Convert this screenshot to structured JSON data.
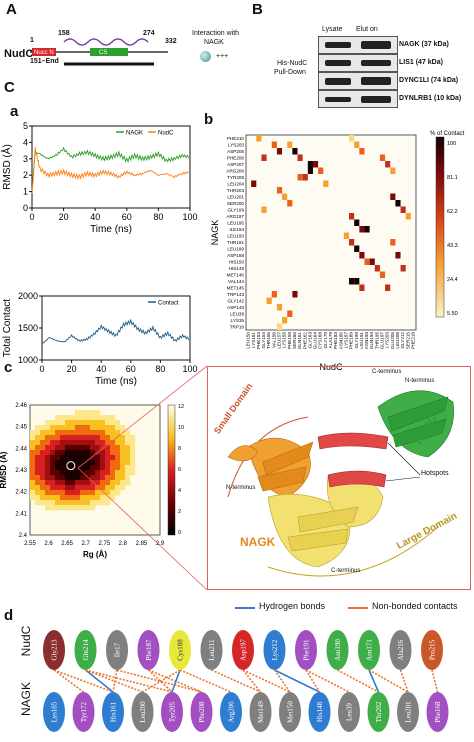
{
  "figure": {
    "panel_labels": {
      "A": "A",
      "B": "B",
      "C": "C",
      "a": "a",
      "b": "b",
      "c": "c",
      "d": "d"
    }
  },
  "panelA": {
    "protein": "NudC",
    "start": "1",
    "end": "332",
    "mark1": "158",
    "mark2": "274",
    "domain_left": "Nucc N",
    "domain_cs": "CS",
    "construct": "151–End",
    "interaction_title_1": "Interaction with",
    "interaction_title_2": "NAGK",
    "interaction_result": "+++",
    "colors": {
      "domain_left": "#d62728",
      "domain_cs": "#2ca02c",
      "coil": "#7b3fa0"
    }
  },
  "panelB": {
    "col_lysate": "Lysate",
    "col_elution": "Elut on",
    "row_label_1": "His-NudC",
    "row_label_2": "Pull-Down",
    "rows": [
      {
        "label": "NAGK (37 kDa)"
      },
      {
        "label": "LIS1 (47 kDa)"
      },
      {
        "label": "DYNC1LI (74 kDa)"
      },
      {
        "label": "DYNLRB1 (10 kDa)"
      }
    ]
  },
  "chart_rmsd": {
    "chart_data": {
      "type": "line",
      "ylabel": "RMSD (Å)",
      "xlabel": "Time (ns)",
      "xlim": [
        0,
        100
      ],
      "ylim": [
        0,
        5
      ],
      "xticks": [
        "0",
        "20",
        "40",
        "60",
        "80",
        "100"
      ],
      "yticks": [
        "0",
        "1",
        "2",
        "3",
        "4",
        "5"
      ],
      "legend_position": "top-right",
      "series": [
        {
          "name": "NAGK",
          "color": "#2ca02c",
          "x": [
            0,
            2,
            5,
            10,
            15,
            20,
            25,
            30,
            35,
            40,
            45,
            50,
            55,
            60,
            65,
            70,
            75,
            80,
            85,
            90,
            95,
            100
          ],
          "y": [
            1.0,
            3.4,
            3.3,
            3.0,
            3.2,
            3.6,
            3.1,
            3.3,
            3.4,
            3.2,
            3.0,
            3.1,
            3.3,
            2.9,
            3.2,
            3.0,
            3.1,
            3.3,
            2.9,
            3.0,
            3.2,
            3.1
          ]
        },
        {
          "name": "NudC",
          "color": "#ff7f0e",
          "x": [
            0,
            2,
            5,
            10,
            15,
            20,
            25,
            30,
            35,
            40,
            45,
            50,
            55,
            60,
            65,
            70,
            75,
            80,
            85,
            90,
            95,
            100
          ],
          "y": [
            0.8,
            3.6,
            2.4,
            2.0,
            2.1,
            2.2,
            2.0,
            1.9,
            2.1,
            2.0,
            2.2,
            2.1,
            1.9,
            2.2,
            2.0,
            2.1,
            2.3,
            2.0,
            2.1,
            1.9,
            2.1,
            2.2
          ]
        }
      ]
    }
  },
  "chart_contact": {
    "chart_data": {
      "type": "line",
      "ylabel": "Total Contact",
      "xlabel": "Time (ns)",
      "xlim": [
        0,
        100
      ],
      "ylim": [
        1000,
        2000
      ],
      "xticks": [
        "0",
        "20",
        "40",
        "60",
        "80",
        "100"
      ],
      "yticks": [
        "1000",
        "1500",
        "2000"
      ],
      "legend_position": "top-right",
      "series": [
        {
          "name": "Contact",
          "color": "#1f5f8b",
          "x": [
            0,
            5,
            10,
            15,
            20,
            25,
            30,
            35,
            40,
            45,
            50,
            55,
            60,
            65,
            70,
            75,
            80,
            85,
            90,
            95,
            100
          ],
          "y": [
            1250,
            1350,
            1300,
            1280,
            1380,
            1300,
            1320,
            1400,
            1520,
            1450,
            1380,
            1550,
            1600,
            1480,
            1420,
            1500,
            1350,
            1420,
            1300,
            1380,
            1320
          ]
        }
      ]
    }
  },
  "chart_heatmap": {
    "chart_data": {
      "type": "heatmap",
      "xlabel": "NudC",
      "ylabel": "NAGK",
      "colorbar_title": "% of Contact",
      "colorbar_ticks": [
        "100",
        "81.1",
        "62.2",
        "43.3",
        "24.4",
        "5.50"
      ],
      "y_categories": [
        "PHE210",
        "LYS203",
        "ASP205",
        "PHE208",
        "ASP207",
        "ARG206",
        "TYR205",
        "LEU204",
        "THR203",
        "LEU201",
        "SER200",
        "GLY199",
        "ARG197",
        "LEU195",
        "ILE194",
        "LEU193",
        "THR191",
        "LEU189",
        "ASP188",
        "HIS150",
        "HIS148",
        "MET146",
        "VAL144",
        "MET145",
        "TRP143",
        "GLY142",
        "ASP140",
        "LEU38",
        "LYS35",
        "TRP18"
      ],
      "x_categories": [
        "LEU150",
        "LYS151",
        "PHE153",
        "GLY154",
        "THR155",
        "VAL156",
        "LEU157",
        "LYS158",
        "PHE159",
        "SER160",
        "GLN161",
        "PHE162",
        "GLY163",
        "GLU164",
        "CYS168",
        "GLY170",
        "ALA179",
        "PHE183",
        "ASN185",
        "LYS187",
        "PHE189",
        "GLY190",
        "LEU191",
        "ASN193",
        "GLN194",
        "THR195",
        "GLU197",
        "LYS203",
        "GLU205",
        "LEU208",
        "GLY212",
        "SER215",
        "PHE218"
      ],
      "cells": [
        [
          0,
          2,
          40
        ],
        [
          1,
          5,
          55
        ],
        [
          1,
          8,
          30
        ],
        [
          2,
          6,
          80
        ],
        [
          2,
          9,
          95
        ],
        [
          3,
          3,
          60
        ],
        [
          3,
          10,
          70
        ],
        [
          4,
          12,
          90
        ],
        [
          4,
          13,
          75
        ],
        [
          5,
          12,
          100
        ],
        [
          5,
          14,
          50
        ],
        [
          6,
          10,
          45
        ],
        [
          6,
          11,
          65
        ],
        [
          7,
          1,
          85
        ],
        [
          7,
          15,
          40
        ],
        [
          8,
          6,
          55
        ],
        [
          9,
          7,
          35
        ],
        [
          10,
          8,
          50
        ],
        [
          11,
          3,
          30
        ],
        [
          12,
          20,
          70
        ],
        [
          13,
          21,
          90
        ],
        [
          14,
          22,
          85
        ],
        [
          14,
          23,
          95
        ],
        [
          15,
          19,
          40
        ],
        [
          16,
          20,
          60
        ],
        [
          17,
          21,
          100
        ],
        [
          18,
          22,
          75
        ],
        [
          19,
          23,
          55
        ],
        [
          19,
          24,
          80
        ],
        [
          20,
          25,
          65
        ],
        [
          21,
          26,
          45
        ],
        [
          22,
          20,
          90
        ],
        [
          22,
          21,
          100
        ],
        [
          23,
          22,
          70
        ],
        [
          23,
          27,
          60
        ],
        [
          24,
          5,
          50
        ],
        [
          24,
          9,
          85
        ],
        [
          25,
          4,
          30
        ],
        [
          26,
          6,
          40
        ],
        [
          27,
          8,
          55
        ],
        [
          28,
          7,
          35
        ],
        [
          29,
          6,
          25
        ],
        [
          9,
          28,
          75
        ],
        [
          10,
          29,
          95
        ],
        [
          11,
          30,
          60
        ],
        [
          12,
          31,
          40
        ],
        [
          16,
          28,
          50
        ],
        [
          18,
          29,
          85
        ],
        [
          20,
          30,
          70
        ],
        [
          3,
          26,
          45
        ],
        [
          4,
          27,
          65
        ],
        [
          5,
          28,
          35
        ],
        [
          0,
          20,
          25
        ],
        [
          1,
          21,
          40
        ],
        [
          2,
          22,
          55
        ]
      ]
    }
  },
  "chart_density": {
    "chart_data": {
      "type": "heatmap",
      "xlabel": "Rg (Å)",
      "ylabel": "RMSD (Å)",
      "xticks": [
        "2.55",
        "2.6",
        "2.65",
        "2.7",
        "2.75",
        "2.8",
        "2.85",
        "2.9"
      ],
      "yticks": [
        "2.4",
        "2.41",
        "2.42",
        "2.43",
        "2.44",
        "2.45",
        "2.46"
      ],
      "xlim": [
        2.55,
        2.9
      ],
      "ylim": [
        2.4,
        2.46
      ],
      "colorbar_ticks": [
        "12",
        "10",
        "8",
        "6",
        "4",
        "2",
        "0"
      ]
    }
  },
  "structure": {
    "label_small": "Small Domain",
    "label_large": "Large Domain",
    "label_nagk": "NAGK",
    "label_nudc": "NudC",
    "label_hotspots": "Hotspots",
    "label_cterm": "C-terminus",
    "label_nterm": "N-terminus",
    "label_nterm_left": "N-terminus",
    "label_cterm_bottom": "C-terminus"
  },
  "panelD": {
    "legend_hbond": "Hydrogen bonds",
    "legend_nonbond": "Non-bonded contacts",
    "row_nudc": "NudC",
    "row_nagk": "NAGK",
    "nudc": [
      {
        "name": "Gly213",
        "color": "#8b2e2e"
      },
      {
        "name": "Gln214",
        "color": "#3fae49"
      },
      {
        "name": "Ile17",
        "color": "#7f7f7f"
      },
      {
        "name": "Phe187",
        "color": "#a14fc1"
      },
      {
        "name": "Cys188",
        "color": "#e8e83a"
      },
      {
        "name": "Leu211",
        "color": "#7f7f7f"
      },
      {
        "name": "Asp197",
        "color": "#d62728"
      },
      {
        "name": "Lys212",
        "color": "#2f7dd1"
      },
      {
        "name": "Phe191",
        "color": "#a14fc1"
      },
      {
        "name": "Asn190",
        "color": "#3fae49"
      },
      {
        "name": "Asn171",
        "color": "#3fae49"
      },
      {
        "name": "Ala216",
        "color": "#7f7f7f"
      },
      {
        "name": "Pro215",
        "color": "#c9572a"
      }
    ],
    "nagk": [
      {
        "name": "Lys165",
        "color": "#2f7dd1"
      },
      {
        "name": "Tyr172",
        "color": "#a14fc1"
      },
      {
        "name": "His161",
        "color": "#2f7dd1"
      },
      {
        "name": "Leu200",
        "color": "#7f7f7f"
      },
      {
        "name": "Tyr205",
        "color": "#a14fc1"
      },
      {
        "name": "Phe208",
        "color": "#a14fc1"
      },
      {
        "name": "Arg206",
        "color": "#2f7dd1"
      },
      {
        "name": "Met149",
        "color": "#7f7f7f"
      },
      {
        "name": "Met150",
        "color": "#7f7f7f"
      },
      {
        "name": "His148",
        "color": "#2f7dd1"
      },
      {
        "name": "Leu39",
        "color": "#7f7f7f"
      },
      {
        "name": "Thr202",
        "color": "#3fae49"
      },
      {
        "name": "Leu201",
        "color": "#7f7f7f"
      },
      {
        "name": "Phe168",
        "color": "#a14fc1"
      }
    ]
  }
}
